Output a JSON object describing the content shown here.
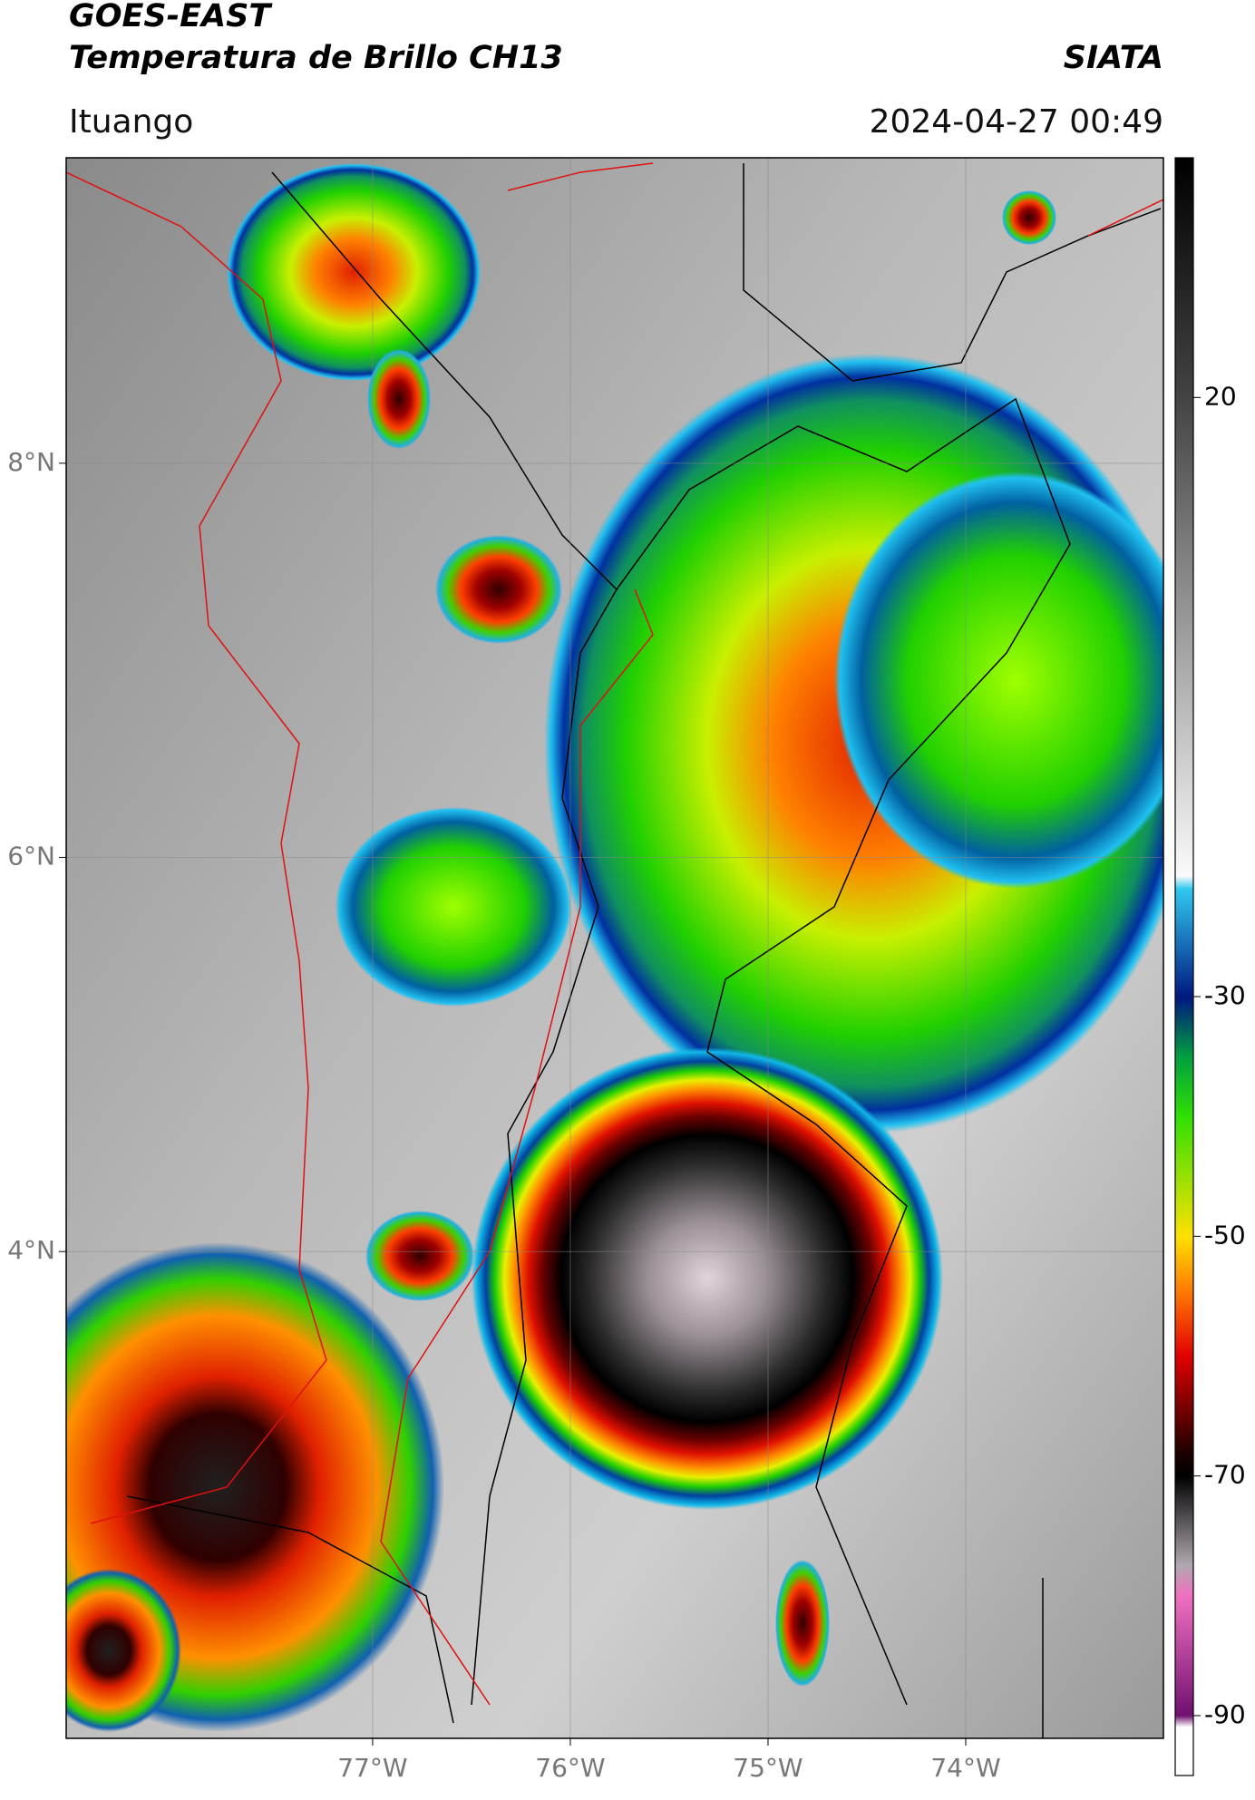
{
  "header": {
    "title": "GOES-EAST",
    "subtitle": "Temperatura de Brillo CH13",
    "source": "SIATA",
    "location": "Ituango",
    "datetime": "2024-04-27 00:49"
  },
  "map": {
    "xlim": [
      -78.55,
      -73.0
    ],
    "ylim": [
      1.53,
      9.55
    ],
    "xticks": [
      {
        "value": -77,
        "label": "77°W"
      },
      {
        "value": -76,
        "label": "76°W"
      },
      {
        "value": -75,
        "label": "75°W"
      },
      {
        "value": -74,
        "label": "74°W"
      }
    ],
    "yticks": [
      {
        "value": 8,
        "label": "8°N"
      },
      {
        "value": 6,
        "label": "6°N"
      },
      {
        "value": 4,
        "label": "4°N"
      }
    ],
    "grid": true
  },
  "colorbar": {
    "lim": [
      -95,
      40
    ],
    "ticks": [
      20,
      -30,
      -50,
      -70,
      -90
    ]
  }
}
